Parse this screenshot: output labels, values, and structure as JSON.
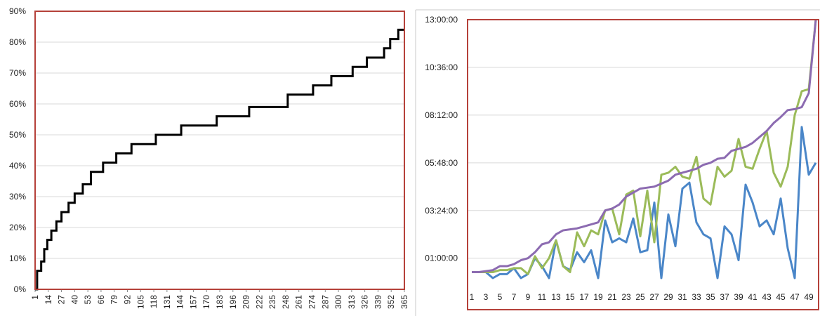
{
  "chart_data": [
    {
      "type": "line",
      "x_range": [
        1,
        365
      ],
      "x_tick_labels": [
        "1",
        "14",
        "27",
        "40",
        "53",
        "66",
        "79",
        "92",
        "105",
        "118",
        "131",
        "144",
        "157",
        "170",
        "183",
        "196",
        "209",
        "222",
        "235",
        "248",
        "261",
        "274",
        "287",
        "300",
        "313",
        "326",
        "339",
        "352",
        "365"
      ],
      "y_tick_labels": [
        "0%",
        "10%",
        "20%",
        "30%",
        "40%",
        "50%",
        "60%",
        "70%",
        "80%",
        "90%"
      ],
      "ylim": [
        0,
        90
      ],
      "y_unit": "%",
      "grid": true,
      "plot_border_color": "#b5413a",
      "series": [
        {
          "color": "#000000",
          "step": true,
          "x": [
            1,
            3,
            7,
            10,
            13,
            17,
            22,
            27,
            34,
            40,
            48,
            56,
            68,
            81,
            96,
            120,
            145,
            180,
            212,
            250,
            275,
            293,
            314,
            328,
            345,
            351,
            359,
            363,
            365
          ],
          "y": [
            0,
            6,
            9,
            13,
            16,
            19,
            22,
            25,
            28,
            31,
            34,
            38,
            41,
            44,
            47,
            50,
            53,
            56,
            59,
            63,
            66,
            69,
            72,
            75,
            78,
            81,
            84,
            84,
            84
          ]
        }
      ]
    },
    {
      "type": "line",
      "x_range": [
        1,
        50
      ],
      "x_tick_labels": [
        "1",
        "3",
        "5",
        "7",
        "9",
        "11",
        "13",
        "15",
        "17",
        "19",
        "21",
        "23",
        "25",
        "27",
        "29",
        "31",
        "33",
        "35",
        "37",
        "39",
        "41",
        "43",
        "45",
        "47",
        "49"
      ],
      "y_tick_labels": [
        "01:00:00",
        "03:24:00",
        "05:48:00",
        "08:12:00",
        "10:36:00",
        "13:00:00"
      ],
      "ylim_hours": [
        0,
        13
      ],
      "grid": true,
      "plot_border_color": "#b5413a",
      "series": [
        {
          "color": "#4a86c8",
          "y": [
            0.3,
            0.3,
            0.3,
            0.0,
            0.2,
            0.2,
            0.5,
            0.0,
            0.2,
            1.0,
            0.6,
            0.0,
            1.9,
            0.6,
            0.4,
            1.3,
            0.8,
            1.4,
            0.0,
            2.9,
            1.8,
            2.0,
            1.8,
            3.0,
            1.3,
            1.4,
            3.8,
            0.0,
            3.2,
            1.6,
            4.5,
            4.8,
            2.8,
            2.2,
            2.0,
            0.0,
            2.6,
            2.2,
            0.9,
            4.7,
            3.8,
            2.6,
            2.9,
            2.2,
            4.0,
            1.5,
            0.0,
            7.6,
            5.2,
            5.8
          ]
        },
        {
          "color": "#9bbb59",
          "y": [
            0.3,
            0.3,
            0.3,
            0.3,
            0.4,
            0.4,
            0.5,
            0.5,
            0.2,
            1.1,
            0.5,
            1.0,
            1.9,
            0.6,
            0.3,
            2.3,
            1.6,
            2.4,
            2.2,
            3.4,
            3.5,
            2.2,
            4.2,
            4.4,
            2.1,
            4.4,
            1.8,
            5.2,
            5.3,
            5.6,
            5.1,
            5.0,
            6.1,
            4.0,
            3.7,
            5.6,
            5.1,
            5.4,
            7.0,
            5.6,
            5.5,
            6.5,
            7.4,
            5.3,
            4.6,
            5.6,
            8.2,
            9.4,
            9.5,
            13.0
          ]
        },
        {
          "color": "#8c6bb1",
          "y": [
            0.3,
            0.3,
            0.35,
            0.4,
            0.6,
            0.6,
            0.7,
            0.9,
            1.0,
            1.3,
            1.7,
            1.8,
            2.2,
            2.4,
            2.45,
            2.5,
            2.6,
            2.7,
            2.8,
            3.4,
            3.5,
            3.7,
            4.1,
            4.3,
            4.5,
            4.55,
            4.6,
            4.75,
            4.9,
            5.2,
            5.3,
            5.4,
            5.5,
            5.7,
            5.8,
            6.0,
            6.05,
            6.4,
            6.5,
            6.6,
            6.8,
            7.1,
            7.4,
            7.8,
            8.1,
            8.45,
            8.5,
            8.6,
            9.3,
            13.0
          ]
        }
      ]
    }
  ]
}
